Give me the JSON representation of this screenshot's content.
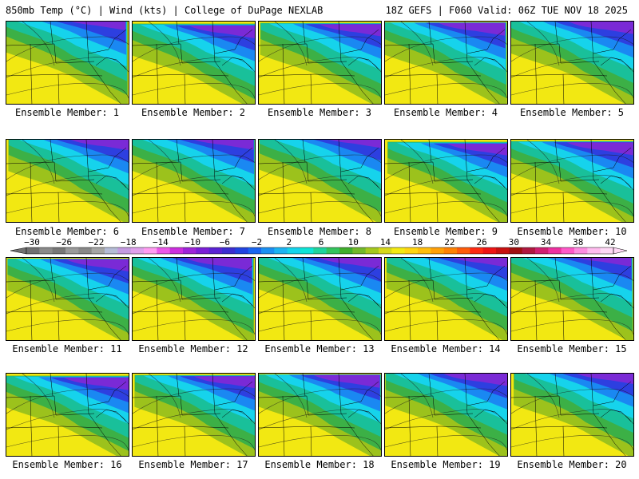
{
  "header": {
    "left": "850mb Temp (°C) | Wind (kts) | College of DuPage NEXLAB",
    "right": "18Z GEFS | F060 Valid: 06Z TUE NOV 18 2025"
  },
  "members": [
    "Ensemble Member: 1",
    "Ensemble Member: 2",
    "Ensemble Member: 3",
    "Ensemble Member: 4",
    "Ensemble Member: 5",
    "Ensemble Member: 6",
    "Ensemble Member: 7",
    "Ensemble Member: 8",
    "Ensemble Member: 9",
    "Ensemble Member: 10",
    "Ensemble Member: 11",
    "Ensemble Member: 12",
    "Ensemble Member: 13",
    "Ensemble Member: 14",
    "Ensemble Member: 15",
    "Ensemble Member: 16",
    "Ensemble Member: 17",
    "Ensemble Member: 18",
    "Ensemble Member: 19",
    "Ensemble Member: 20"
  ],
  "colorbar": {
    "tick_labels": [
      "−30",
      "−26",
      "−22",
      "−18",
      "−14",
      "−10",
      "−6",
      "−2",
      "2",
      "6",
      "10",
      "14",
      "18",
      "22",
      "26",
      "30",
      "34",
      "38",
      "42"
    ],
    "colors": [
      "#707070",
      "#8a8a8a",
      "#777777",
      "#9a9a9a",
      "#888888",
      "#a5a5a5",
      "#b4bcd6",
      "#c49ae0",
      "#dfa0ec",
      "#ff9cf2",
      "#ec56e8",
      "#cc2ede",
      "#9f24d8",
      "#7b1fd6",
      "#5a23d4",
      "#3c2ed0",
      "#2244e0",
      "#1a66f0",
      "#1a90f2",
      "#1cb4f2",
      "#14d4ec",
      "#0ee4d6",
      "#20d49c",
      "#34c45c",
      "#40ae2c",
      "#72b82a",
      "#a4c81e",
      "#d6d81a",
      "#f4ea12",
      "#ffd610",
      "#ffbe0c",
      "#ffa008",
      "#ff8204",
      "#ff5c0a",
      "#ff2a12",
      "#ee1414",
      "#c81010",
      "#a01010",
      "#b01840",
      "#d02070",
      "#ee30a0",
      "#ff58c8",
      "#ff8ce0",
      "#ffbcef",
      "#ffd8f6"
    ]
  },
  "map_colors": {
    "violet": "#7a2ad6",
    "blue": "#2d3fe0",
    "sky": "#1a88f2",
    "cyan": "#16d3ec",
    "teal": "#19c09a",
    "green": "#3cb046",
    "olive": "#9cc21c",
    "yellow": "#f2e812"
  }
}
